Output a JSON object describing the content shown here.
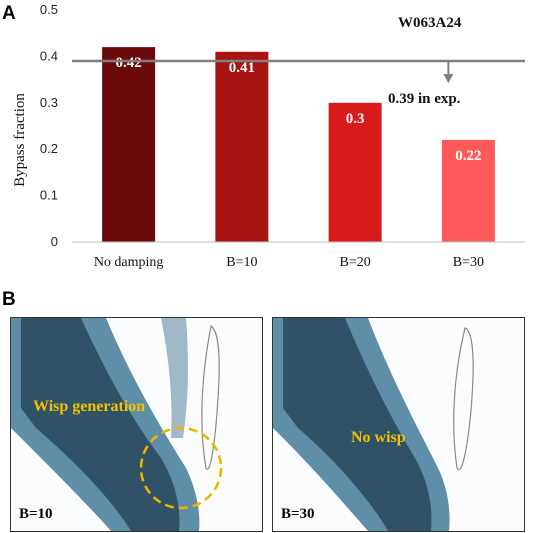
{
  "panel_a_label": "A",
  "panel_b_label": "B",
  "chart_data": {
    "type": "bar",
    "categories": [
      "No damping",
      "B=10",
      "B=20",
      "B=30"
    ],
    "values": [
      0.42,
      0.41,
      0.3,
      0.22
    ],
    "value_labels": [
      "0.42",
      "0.41",
      "0.3",
      "0.22"
    ],
    "bar_colors": [
      "#6b0a0a",
      "#a81414",
      "#d81a1a",
      "#ff5a5a"
    ],
    "ylabel": "Bypass fraction",
    "ylim": [
      0,
      0.5
    ],
    "yticks": [
      "0",
      "0.1",
      "0.2",
      "0.3",
      "0.4",
      "0.5"
    ],
    "reference_value": 0.39,
    "reference_label": "0.39 in exp.",
    "annotation": "W063A24",
    "grid": false
  },
  "images": {
    "left": {
      "label": "B=10",
      "note": "Wisp generation"
    },
    "right": {
      "label": "B=30",
      "note": "No wisp"
    }
  },
  "colors": {
    "reference_line": "#7f7f7f",
    "flow_surface": "#5f8ea8",
    "highlight_circle": "#f2b100"
  }
}
